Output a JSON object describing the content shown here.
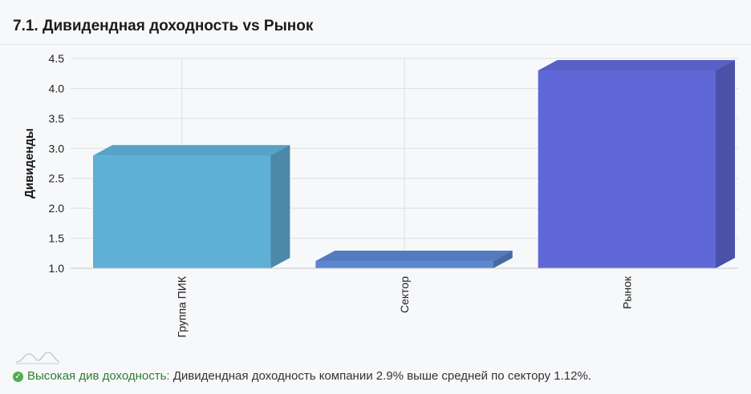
{
  "title": "7.1. Дивидендная доходность vs Рынок",
  "note": {
    "icon": "check-circle-icon",
    "status_label": "Высокая див доходность:",
    "text": " Дивидендная доходность компании 2.9% выше средней по сектору 1.12%.",
    "status_color": "#2e7d32"
  },
  "chart_data": {
    "type": "bar",
    "title": "",
    "xlabel": "",
    "ylabel": "Дивиденды",
    "categories": [
      "Группа ПИК",
      "Сектор",
      "Рынок"
    ],
    "values": [
      2.88,
      1.12,
      4.3
    ],
    "colors": [
      "#5fb0d6",
      "#5b86d0",
      "#5f68d6"
    ],
    "ylim": [
      1.0,
      4.5
    ],
    "yticks": [
      "1.0",
      "1.5",
      "2.0",
      "2.5",
      "3.0",
      "3.5",
      "4.0",
      "4.5"
    ],
    "grid": true,
    "style": "3d"
  }
}
